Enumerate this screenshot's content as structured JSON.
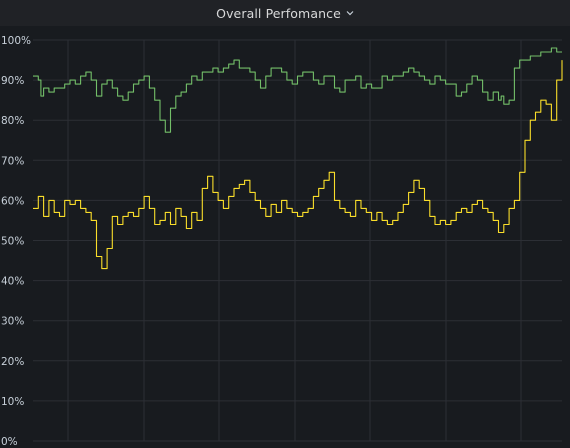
{
  "panel": {
    "title": "Overall Perfomance"
  },
  "icons": {
    "title_menu": "chevron-down-icon"
  },
  "colors": {
    "background": "#181b1f",
    "grid": "#2c2f35",
    "series_green": "#73bf69",
    "series_yellow": "#fade2a",
    "text": "#c7d0d9"
  },
  "chart_data": {
    "type": "line",
    "title": "Overall Perfomance",
    "ylim": [
      0,
      100
    ],
    "y_ticks": [
      "0%",
      "10%",
      "20%",
      "30%",
      "40%",
      "50%",
      "60%",
      "70%",
      "80%",
      "90%",
      "100%"
    ],
    "y_tick_values": [
      0,
      10,
      20,
      30,
      40,
      50,
      60,
      70,
      80,
      90,
      100
    ],
    "x_tick_labels_visible": false,
    "grid": true,
    "legend": "none",
    "series": [
      {
        "color": "#73bf69",
        "x": [
          0,
          1,
          1.5,
          2,
          3,
          4,
          5,
          6,
          7,
          8,
          9,
          10,
          11,
          12,
          13,
          14,
          15,
          16,
          17,
          18,
          19,
          20,
          21,
          22,
          23,
          24,
          25,
          26,
          27,
          28,
          29,
          30,
          31,
          32,
          33,
          34,
          35,
          36,
          37,
          38,
          39,
          40,
          41,
          42,
          43,
          44,
          45,
          46,
          47,
          48,
          49,
          50,
          51,
          52,
          53,
          54,
          55,
          56,
          57,
          58,
          59,
          60,
          61,
          62,
          63,
          64,
          65,
          66,
          67,
          68,
          69,
          70,
          71,
          72,
          73,
          74,
          75,
          76,
          77,
          78,
          79,
          80,
          81,
          82,
          83,
          84,
          85,
          86,
          87,
          88,
          88.5,
          89,
          90,
          91,
          92,
          93,
          94,
          95,
          96,
          97,
          98,
          99,
          100
        ],
        "y": [
          91,
          90,
          86,
          88,
          87,
          88,
          88,
          89,
          90,
          89,
          91,
          92,
          90,
          86,
          89,
          90,
          88,
          86,
          85,
          87,
          89,
          90,
          91,
          88,
          85,
          80,
          77,
          83,
          86,
          87,
          89,
          91,
          90,
          92,
          92,
          93,
          92,
          93,
          94,
          95,
          93,
          93,
          92,
          90,
          88,
          91,
          93,
          93,
          92,
          90,
          89,
          91,
          92,
          92,
          90,
          89,
          91,
          91,
          88,
          87,
          90,
          90,
          91,
          88,
          89,
          88,
          88,
          91,
          90,
          91,
          91,
          92,
          93,
          92,
          91,
          90,
          89,
          91,
          90,
          89,
          89,
          86,
          87,
          89,
          91,
          90,
          87,
          85,
          87,
          85,
          86,
          84,
          85,
          93,
          95,
          95,
          96,
          96,
          97,
          97,
          98,
          97,
          97
        ]
      },
      {
        "color": "#fade2a",
        "x": [
          0,
          1,
          2,
          3,
          4,
          5,
          6,
          7,
          8,
          9,
          10,
          11,
          12,
          13,
          14,
          15,
          16,
          17,
          18,
          19,
          20,
          21,
          22,
          23,
          24,
          25,
          26,
          27,
          28,
          29,
          30,
          31,
          32,
          33,
          34,
          35,
          36,
          37,
          38,
          39,
          40,
          41,
          42,
          43,
          44,
          45,
          46,
          47,
          48,
          49,
          50,
          51,
          52,
          53,
          54,
          55,
          56,
          57,
          58,
          59,
          60,
          61,
          62,
          63,
          64,
          65,
          66,
          67,
          68,
          69,
          70,
          71,
          72,
          73,
          74,
          75,
          76,
          77,
          78,
          79,
          80,
          81,
          82,
          83,
          84,
          85,
          86,
          87,
          88,
          89,
          90,
          91,
          92,
          93,
          94,
          95,
          96,
          97,
          98,
          99,
          100
        ],
        "y": [
          58,
          61,
          56,
          60,
          57,
          56,
          60,
          59,
          60,
          58,
          57,
          55,
          46,
          43,
          48,
          56,
          54,
          56,
          57,
          56,
          58,
          61,
          58,
          54,
          55,
          57,
          54,
          58,
          56,
          53,
          57,
          55,
          63,
          66,
          62,
          60,
          58,
          61,
          63,
          64,
          65,
          62,
          60,
          58,
          56,
          59,
          57,
          60,
          58,
          57,
          56,
          57,
          58,
          61,
          63,
          65,
          67,
          60,
          58,
          57,
          56,
          60,
          58,
          57,
          55,
          57,
          55,
          54,
          55,
          57,
          59,
          62,
          65,
          63,
          60,
          56,
          54,
          55,
          54,
          55,
          57,
          58,
          57,
          59,
          60,
          58,
          57,
          55,
          52,
          54,
          58,
          60,
          67,
          75,
          80,
          82,
          85,
          84,
          80,
          90,
          95
        ]
      }
    ]
  }
}
